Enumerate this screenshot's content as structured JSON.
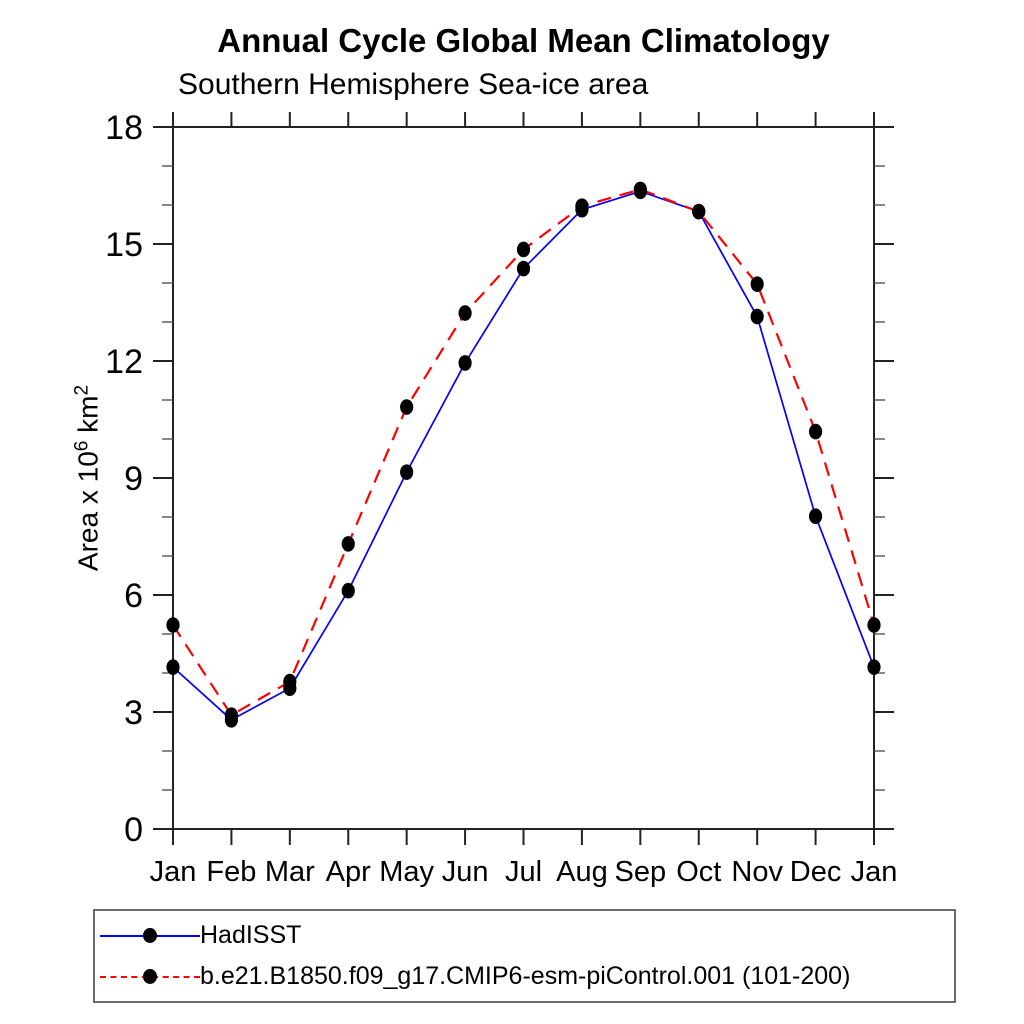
{
  "chart_data": {
    "type": "line",
    "title": "Annual Cycle Global Mean Climatology",
    "subtitle": "Southern Hemisphere Sea-ice area",
    "xlabel": "",
    "ylabel": "Area x 10^6 km^2",
    "ylabel_parts": {
      "prefix": "Area x 10",
      "sup1": "6",
      "mid": " km",
      "sup2": "2"
    },
    "x_categories": [
      "Jan",
      "Feb",
      "Mar",
      "Apr",
      "May",
      "Jun",
      "Jul",
      "Aug",
      "Sep",
      "Oct",
      "Nov",
      "Dec",
      "Jan"
    ],
    "y_major_ticks": [
      0,
      3,
      6,
      9,
      12,
      15,
      18
    ],
    "y_minor_step": 1,
    "ylim": [
      0,
      18
    ],
    "grid": false,
    "legend_position": "bottom",
    "axis_color": "#222222",
    "minor_tick_color": "#555555",
    "marker_color": "#000000",
    "series": [
      {
        "name": "HadISST",
        "color": "#0000ff",
        "line_style": "solid",
        "values": [
          4.15,
          2.8,
          3.61,
          6.11,
          9.15,
          11.95,
          14.37,
          15.88,
          16.35,
          15.83,
          13.14,
          8.02,
          4.15
        ]
      },
      {
        "name": "b.e21.B1850.f09_g17.CMIP6-esm-piControl.001 (101-200)",
        "color": "#ff0000",
        "line_style": "dashed",
        "values": [
          5.23,
          2.92,
          3.78,
          7.31,
          10.82,
          13.23,
          14.86,
          15.97,
          16.4,
          15.83,
          13.97,
          10.19,
          5.23
        ]
      }
    ]
  }
}
